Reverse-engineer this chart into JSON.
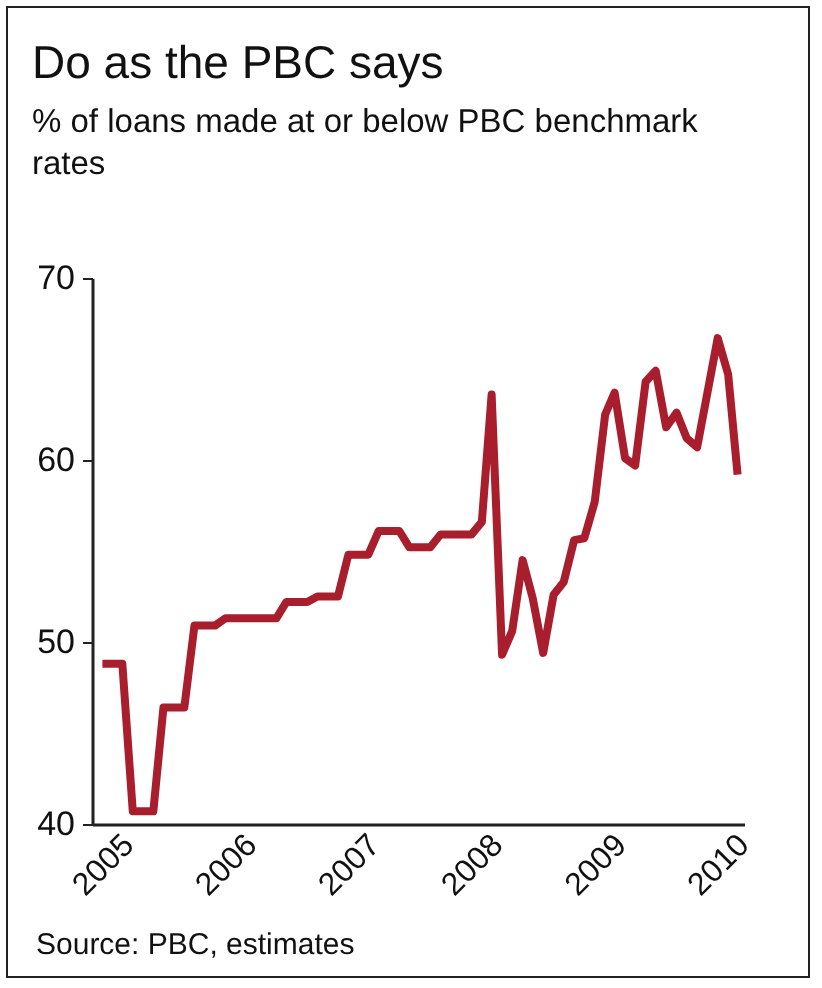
{
  "chart_data": {
    "type": "line",
    "title": "Do as the PBC says",
    "subtitle": "% of loans made at or below PBC benchmark rates",
    "x": [
      "2005-01",
      "2005-03",
      "2005-04",
      "2005-06",
      "2005-07",
      "2005-09",
      "2005-10",
      "2005-12",
      "2006-01",
      "2006-06",
      "2006-07",
      "2006-09",
      "2006-10",
      "2006-12",
      "2007-01",
      "2007-03",
      "2007-04",
      "2007-06",
      "2007-07",
      "2007-09",
      "2007-10",
      "2008-01",
      "2008-02",
      "2008-03",
      "2008-04",
      "2008-05",
      "2008-06",
      "2008-07",
      "2008-08",
      "2008-09",
      "2008-10",
      "2008-11",
      "2008-12",
      "2009-01",
      "2009-02",
      "2009-03",
      "2009-04",
      "2009-05",
      "2009-06",
      "2009-07",
      "2009-08",
      "2009-09",
      "2009-10",
      "2009-11",
      "2010-01",
      "2010-02",
      "2010-03"
    ],
    "series": [
      {
        "color": "#a91e2d",
        "values": [
          48.8,
          48.8,
          40.7,
          40.7,
          46.4,
          46.4,
          50.9,
          50.9,
          51.3,
          51.3,
          52.2,
          52.2,
          52.5,
          52.5,
          54.8,
          54.8,
          56.1,
          56.1,
          55.2,
          55.2,
          55.9,
          55.9,
          56.6,
          63.6,
          49.3,
          50.6,
          54.5,
          52.4,
          49.4,
          52.6,
          53.3,
          55.6,
          55.7,
          57.7,
          62.5,
          63.7,
          60.1,
          59.7,
          64.3,
          64.9,
          61.8,
          62.6,
          61.2,
          60.7,
          66.7,
          64.7,
          59.2
        ]
      }
    ],
    "xlim": [
      "2004-12",
      "2010-03-20"
    ],
    "xticks": [
      "2005",
      "2006",
      "2007",
      "2008",
      "2009",
      "2010"
    ],
    "ylim": [
      40,
      70
    ],
    "yticks": [
      40,
      50,
      60,
      70
    ],
    "grid": false,
    "legend": false,
    "marker": "none",
    "line_style": "solid",
    "annotations": [
      "Source: PBC, estimates"
    ]
  }
}
